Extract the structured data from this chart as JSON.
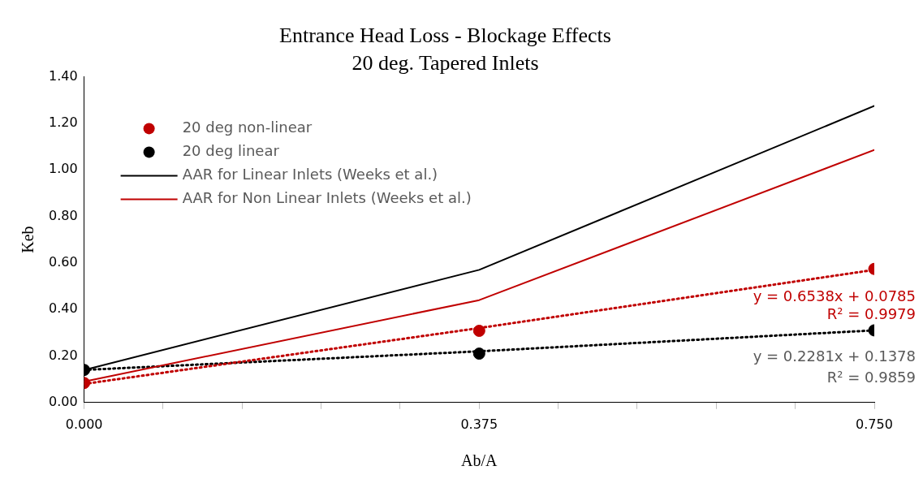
{
  "chart_data": {
    "type": "scatter",
    "title": "Entrance Head Loss - Blockage Effects",
    "subtitle": "20 deg. Tapered Inlets",
    "xlabel": "Ab/A",
    "ylabel": "Keb",
    "x": [
      0,
      0.375,
      0.75
    ],
    "series": [
      {
        "name": "20 deg non-linear",
        "color": "#c00000",
        "marker": "circle",
        "values": [
          0.084,
          0.308,
          0.574
        ]
      },
      {
        "name": "20 deg linear",
        "color": "#000000",
        "marker": "circle",
        "values": [
          0.14,
          0.21,
          0.31
        ]
      },
      {
        "name": "AAR for Linear Inlets (Weeks et al.)",
        "color": "#000000",
        "type": "line",
        "marker": "none",
        "values": [
          0.14,
          0.57,
          1.274
        ]
      },
      {
        "name": "AAR for Non Linear Inlets (Weeks et al.)",
        "color": "#c00000",
        "type": "line",
        "marker": "none",
        "values": [
          0.09,
          0.44,
          1.085
        ]
      },
      {
        "color": "#c00000",
        "type": "line",
        "marker": "none",
        "line_style": "dotted",
        "values": [
          0.08,
          0.32,
          0.57
        ]
      },
      {
        "color": "#000000",
        "type": "line",
        "marker": "none",
        "line_style": "dotted",
        "values": [
          0.14,
          0.22,
          0.31
        ]
      }
    ],
    "xlim": [
      0,
      0.75
    ],
    "xticks": [
      {
        "value": 0,
        "label": "0.000"
      },
      {
        "value": 0.075,
        "label": null
      },
      {
        "value": 0.15,
        "label": null
      },
      {
        "value": 0.225,
        "label": null
      },
      {
        "value": 0.3,
        "label": null
      },
      {
        "value": 0.375,
        "label": "0.375"
      },
      {
        "value": 0.45,
        "label": null
      },
      {
        "value": 0.525,
        "label": null
      },
      {
        "value": 0.6,
        "label": null
      },
      {
        "value": 0.675,
        "label": null
      },
      {
        "value": 0.75,
        "label": "0.750"
      }
    ],
    "ylim": [
      0,
      1.4
    ],
    "yticks": [
      {
        "value": 0,
        "label": "0.00"
      },
      {
        "value": 0.2,
        "label": "0.20"
      },
      {
        "value": 0.4,
        "label": "0.40"
      },
      {
        "value": 0.6,
        "label": "0.60"
      },
      {
        "value": 0.8,
        "label": "0.80"
      },
      {
        "value": 1,
        "label": "1.00"
      },
      {
        "value": 1.2,
        "label": "1.20"
      },
      {
        "value": 1.4,
        "label": "1.40"
      }
    ],
    "annotations": [
      "y = 0.6538x + 0.0785",
      "R² = 0.9979",
      "y = 0.2281x + 0.1378",
      "R² = 0.9859"
    ],
    "legend": "top left",
    "grid": false
  }
}
